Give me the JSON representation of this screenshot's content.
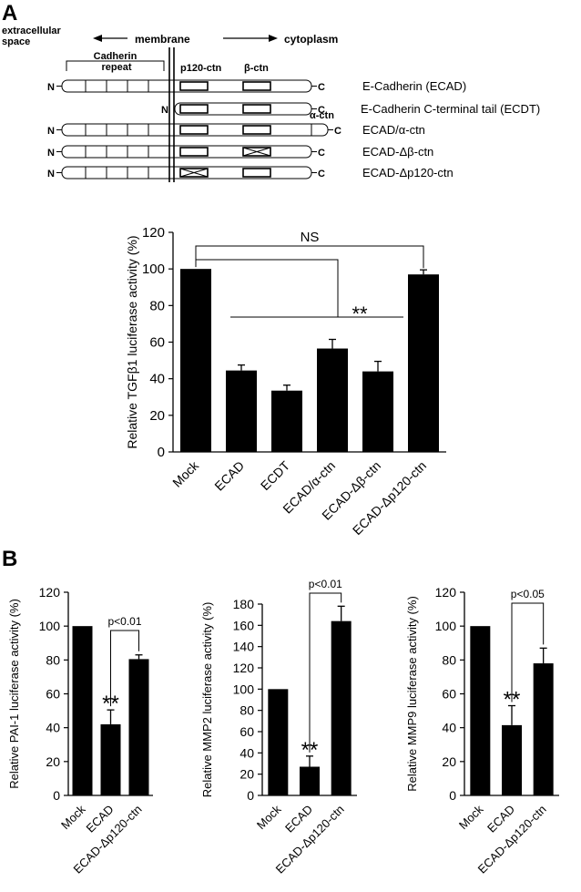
{
  "panelA": {
    "label": "A",
    "header": {
      "left": "extracellular space",
      "mid": "membrane",
      "right": "cytoplasm"
    },
    "domain_labels": {
      "cadherin": "Cadherin repeat",
      "p120": "p120-ctn",
      "beta": "β-ctn",
      "alpha": "α-ctn"
    },
    "constructs": [
      {
        "name": "E-Cadherin (ECAD)",
        "n": "N",
        "c": "C"
      },
      {
        "name": "E-Cadherin C-terminal tail (ECDT)",
        "n": "N",
        "c": "C"
      },
      {
        "name": "ECAD/α-ctn",
        "n": "N",
        "c": "C"
      },
      {
        "name": "ECAD-Δβ-ctn",
        "n": "N",
        "c": "C"
      },
      {
        "name": "ECAD-Δp120-ctn",
        "n": "N",
        "c": "C"
      }
    ]
  },
  "panelB": {
    "label": "B"
  },
  "colors": {
    "bar": "#000000",
    "background": "#ffffff"
  },
  "chart_data": [
    {
      "id": "tgf",
      "type": "bar",
      "ylabel": "Relative TGFβ1 luciferase activity (%)",
      "ylim": [
        0,
        120
      ],
      "yticks": [
        0,
        20,
        40,
        60,
        80,
        100,
        120
      ],
      "categories": [
        "Mock",
        "ECAD",
        "ECDT",
        "ECAD/α-ctn",
        "ECAD-Δβ-ctn",
        "ECAD-Δp120-ctn"
      ],
      "values": [
        100,
        44.5,
        33.5,
        56.5,
        44,
        97
      ],
      "errors": [
        0,
        3,
        3,
        5,
        5.5,
        2.5
      ],
      "annotations": {
        "ns": "NS",
        "sig": "**"
      }
    },
    {
      "id": "pai",
      "type": "bar",
      "ylabel": "Relative PAI-1 luciferase activity (%)",
      "ylim": [
        0,
        120
      ],
      "yticks": [
        0,
        20,
        40,
        60,
        80,
        100,
        120
      ],
      "categories": [
        "Mock",
        "ECAD",
        "ECAD-Δp120-ctn"
      ],
      "values": [
        100,
        42,
        80.5
      ],
      "errors": [
        0,
        8.5,
        2.5
      ],
      "annotations": {
        "p": "p<0.01",
        "sig": "**"
      }
    },
    {
      "id": "mmp2",
      "type": "bar",
      "ylabel": "Relative MMP2 luciferase activity (%)",
      "ylim": [
        0,
        180
      ],
      "yticks": [
        0,
        20,
        40,
        60,
        80,
        100,
        120,
        140,
        160,
        180
      ],
      "categories": [
        "Mock",
        "ECAD",
        "ECAD-Δp120-ctn"
      ],
      "values": [
        100,
        27,
        164
      ],
      "errors": [
        0,
        10,
        14
      ],
      "annotations": {
        "p": "p<0.01",
        "sig": "**"
      }
    },
    {
      "id": "mmp9",
      "type": "bar",
      "ylabel": "Relative MMP9 luciferase activity (%)",
      "ylim": [
        0,
        120
      ],
      "yticks": [
        0,
        20,
        40,
        60,
        80,
        100,
        120
      ],
      "categories": [
        "Mock",
        "ECAD",
        "ECAD-Δp120-ctn"
      ],
      "values": [
        100,
        41.5,
        78
      ],
      "errors": [
        0,
        11.5,
        9
      ],
      "annotations": {
        "p": "p<0.05",
        "sig": "**"
      }
    }
  ]
}
